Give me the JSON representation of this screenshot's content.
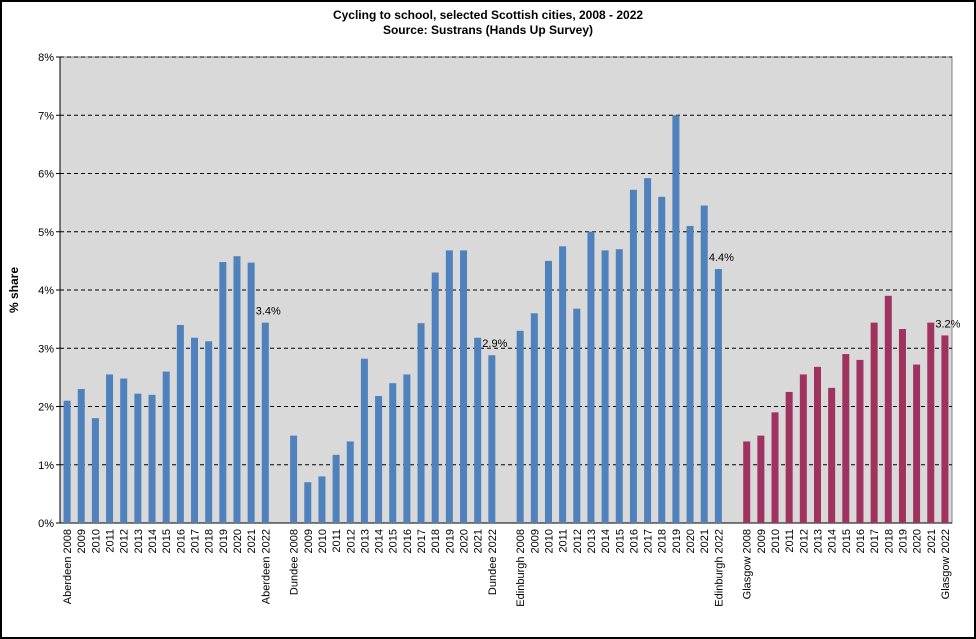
{
  "chart_data": {
    "type": "bar",
    "title": "Cycling to school, selected Scottish cities, 2008 - 2022",
    "subtitle": "Source: Sustrans (Hands Up Survey)",
    "ylabel": "% share",
    "categories": [
      "Aberdeen 2008",
      "2009",
      "2010",
      "2011",
      "2012",
      "2013",
      "2014",
      "2015",
      "2016",
      "2017",
      "2018",
      "2019",
      "2020",
      "2021",
      "Aberdeen 2022",
      null,
      "Dundee 2008",
      "2009",
      "2010",
      "2011",
      "2012",
      "2013",
      "2014",
      "2015",
      "2016",
      "2017",
      "2018",
      "2019",
      "2020",
      "2021",
      "Dundee 2022",
      null,
      "Edinburgh 2008",
      "2009",
      "2010",
      "2011",
      "2012",
      "2013",
      "2014",
      "2015",
      "2016",
      "2017",
      "2018",
      "2019",
      "2020",
      "2021",
      "Edinburgh 2022",
      null,
      "Glasgow 2008",
      "2009",
      "2010",
      "2011",
      "2012",
      "2013",
      "2014",
      "2015",
      "2016",
      "2017",
      "2018",
      "2019",
      "2020",
      "2021",
      "Glasgow 2022"
    ],
    "series": [
      {
        "color": "#4f81bd",
        "values": [
          2.1,
          2.3,
          1.8,
          2.55,
          2.48,
          2.22,
          2.2,
          2.6,
          3.4,
          3.18,
          3.12,
          4.48,
          4.58,
          4.47,
          3.44,
          null,
          1.5,
          0.7,
          0.8,
          1.17,
          1.4,
          2.82,
          2.18,
          2.4,
          2.55,
          3.43,
          4.3,
          4.68,
          4.68,
          3.18,
          2.88,
          null,
          3.3,
          3.6,
          4.5,
          4.75,
          3.68,
          5.0,
          4.68,
          4.7,
          5.72,
          5.92,
          5.6,
          7.0,
          5.1,
          5.45,
          4.36,
          null,
          null,
          null,
          null,
          null,
          null,
          null,
          null,
          null,
          null,
          null,
          null,
          null,
          null,
          null,
          null
        ],
        "value_labels": [
          null,
          null,
          null,
          null,
          null,
          null,
          null,
          null,
          null,
          null,
          null,
          null,
          null,
          null,
          "3.4%",
          null,
          null,
          null,
          null,
          null,
          null,
          null,
          null,
          null,
          null,
          null,
          null,
          null,
          null,
          null,
          "2.9%",
          null,
          null,
          null,
          null,
          null,
          null,
          null,
          null,
          null,
          null,
          null,
          null,
          null,
          null,
          null,
          "4.4%",
          null,
          null,
          null,
          null,
          null,
          null,
          null,
          null,
          null,
          null,
          null,
          null,
          null,
          null,
          null,
          null
        ]
      },
      {
        "color": "#a0325f",
        "values": [
          null,
          null,
          null,
          null,
          null,
          null,
          null,
          null,
          null,
          null,
          null,
          null,
          null,
          null,
          null,
          null,
          null,
          null,
          null,
          null,
          null,
          null,
          null,
          null,
          null,
          null,
          null,
          null,
          null,
          null,
          null,
          null,
          null,
          null,
          null,
          null,
          null,
          null,
          null,
          null,
          null,
          null,
          null,
          null,
          null,
          null,
          null,
          null,
          1.4,
          1.5,
          1.9,
          2.25,
          2.55,
          2.68,
          2.32,
          2.9,
          2.8,
          3.44,
          3.9,
          3.33,
          2.72,
          3.44,
          3.22
        ],
        "value_labels": [
          null,
          null,
          null,
          null,
          null,
          null,
          null,
          null,
          null,
          null,
          null,
          null,
          null,
          null,
          null,
          null,
          null,
          null,
          null,
          null,
          null,
          null,
          null,
          null,
          null,
          null,
          null,
          null,
          null,
          null,
          null,
          null,
          null,
          null,
          null,
          null,
          null,
          null,
          null,
          null,
          null,
          null,
          null,
          null,
          null,
          null,
          null,
          null,
          null,
          null,
          null,
          null,
          null,
          null,
          null,
          null,
          null,
          null,
          null,
          null,
          null,
          null,
          "3.2%"
        ]
      }
    ],
    "ylim": [
      0,
      8
    ],
    "yticks": [
      {
        "value": 0,
        "label": "0%"
      },
      {
        "value": 1,
        "label": "1%"
      },
      {
        "value": 2,
        "label": "2%"
      },
      {
        "value": 3,
        "label": "3%"
      },
      {
        "value": 4,
        "label": "4%"
      },
      {
        "value": 5,
        "label": "5%"
      },
      {
        "value": 6,
        "label": "6%"
      },
      {
        "value": 7,
        "label": "7%"
      },
      {
        "value": 8,
        "label": "8%"
      }
    ],
    "grid": true
  }
}
